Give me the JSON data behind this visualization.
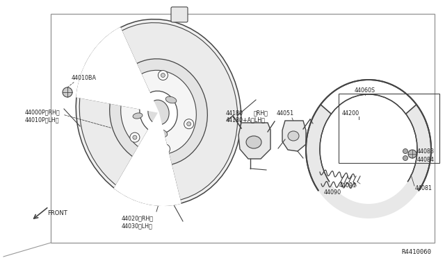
{
  "bg_color": "#ffffff",
  "border_color": "#999999",
  "line_color": "#444444",
  "text_color": "#222222",
  "ref_number": "R4410060",
  "fs": 5.8,
  "border": [
    0.115,
    0.08,
    0.865,
    0.87
  ]
}
